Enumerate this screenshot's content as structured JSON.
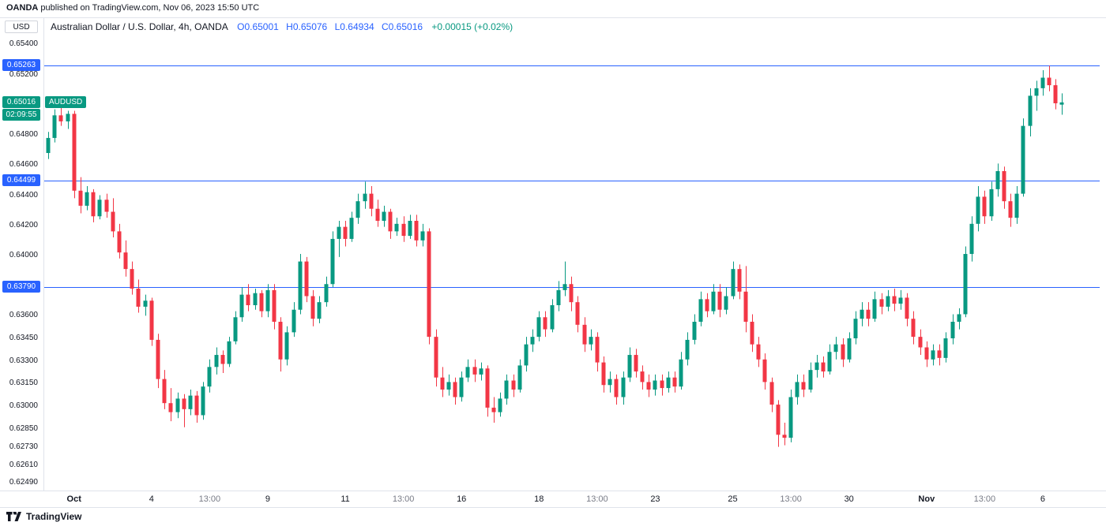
{
  "attribution": {
    "source": "OANDA",
    "rest": " published on TradingView.com, Nov 06, 2023 15:50 UTC"
  },
  "header": {
    "symbol_title": "Australian Dollar / U.S. Dollar, 4h, OANDA",
    "ohlc": [
      {
        "k": "O",
        "v": "0.65001"
      },
      {
        "k": "H",
        "v": "0.65076"
      },
      {
        "k": "L",
        "v": "0.64934"
      },
      {
        "k": "C",
        "v": "0.65016"
      }
    ],
    "change": "+0.00015 (+0.02%)"
  },
  "price_axis": {
    "currency": "USD",
    "ticks": [
      "0.65400",
      "0.65200",
      "0.64800",
      "0.64600",
      "0.64400",
      "0.64200",
      "0.64000",
      "0.63600",
      "0.63450",
      "0.63300",
      "0.63150",
      "0.63000",
      "0.62850",
      "0.62730",
      "0.62610",
      "0.62490"
    ]
  },
  "current_price": {
    "price": "0.65016",
    "symbol_tag": "AUDUSD",
    "countdown": "02:09:55"
  },
  "footer": {
    "brand": "TradingView"
  },
  "colors": {
    "up": "#089981",
    "down": "#f23645",
    "level_line": "#2962ff",
    "badge_blue": "#2962ff",
    "badge_green": "#089981",
    "value_blue": "#2962ff",
    "change_green": "#089981"
  },
  "chart_data": {
    "type": "candlestick",
    "title": "Australian Dollar / U.S. Dollar",
    "symbol": "AUDUSD",
    "interval": "4h",
    "exchange": "OANDA",
    "ylim": [
      0.6244,
      0.6546
    ],
    "levels": [
      "0.65263",
      "0.64499",
      "0.63790"
    ],
    "last_close": "0.65016",
    "x_labels": [
      {
        "t": "Oct",
        "bar": 4,
        "bold": true
      },
      {
        "t": "4",
        "bar": 16
      },
      {
        "t": "13:00",
        "bar": 25,
        "minor": true
      },
      {
        "t": "9",
        "bar": 34
      },
      {
        "t": "11",
        "bar": 46
      },
      {
        "t": "13:00",
        "bar": 55,
        "minor": true
      },
      {
        "t": "16",
        "bar": 64
      },
      {
        "t": "18",
        "bar": 76
      },
      {
        "t": "13:00",
        "bar": 85,
        "minor": true
      },
      {
        "t": "23",
        "bar": 94
      },
      {
        "t": "25",
        "bar": 106
      },
      {
        "t": "13:00",
        "bar": 115,
        "minor": true
      },
      {
        "t": "30",
        "bar": 124
      },
      {
        "t": "Nov",
        "bar": 136,
        "bold": true
      },
      {
        "t": "13:00",
        "bar": 145,
        "minor": true
      },
      {
        "t": "6",
        "bar": 154
      }
    ],
    "candles": [
      [
        0.6468,
        0.6482,
        0.6464,
        0.6478
      ],
      [
        0.6478,
        0.6497,
        0.6475,
        0.6493
      ],
      [
        0.6493,
        0.6499,
        0.6486,
        0.6489
      ],
      [
        0.6489,
        0.6496,
        0.6484,
        0.6494
      ],
      [
        0.6494,
        0.6496,
        0.6438,
        0.6443
      ],
      [
        0.6443,
        0.6452,
        0.6428,
        0.6433
      ],
      [
        0.6433,
        0.6446,
        0.643,
        0.6442
      ],
      [
        0.6442,
        0.6444,
        0.6422,
        0.6426
      ],
      [
        0.6426,
        0.644,
        0.6424,
        0.6437
      ],
      [
        0.6437,
        0.6441,
        0.6425,
        0.6429
      ],
      [
        0.6429,
        0.6438,
        0.6412,
        0.6416
      ],
      [
        0.6416,
        0.6421,
        0.6398,
        0.6402
      ],
      [
        0.6402,
        0.641,
        0.6386,
        0.6391
      ],
      [
        0.6391,
        0.6396,
        0.6374,
        0.6378
      ],
      [
        0.6378,
        0.6384,
        0.6362,
        0.6366
      ],
      [
        0.6366,
        0.6374,
        0.636,
        0.637
      ],
      [
        0.637,
        0.6372,
        0.634,
        0.6344
      ],
      [
        0.6344,
        0.6348,
        0.6312,
        0.6318
      ],
      [
        0.6318,
        0.6324,
        0.6298,
        0.6302
      ],
      [
        0.6302,
        0.6312,
        0.629,
        0.6296
      ],
      [
        0.6296,
        0.6309,
        0.6292,
        0.6305
      ],
      [
        0.6305,
        0.6308,
        0.6286,
        0.6298
      ],
      [
        0.6298,
        0.6311,
        0.6294,
        0.6307
      ],
      [
        0.6307,
        0.631,
        0.6289,
        0.6294
      ],
      [
        0.6294,
        0.6316,
        0.6291,
        0.6313
      ],
      [
        0.6313,
        0.6331,
        0.6309,
        0.6326
      ],
      [
        0.6326,
        0.6339,
        0.6321,
        0.6334
      ],
      [
        0.6334,
        0.6337,
        0.6322,
        0.6328
      ],
      [
        0.6328,
        0.6346,
        0.6326,
        0.6343
      ],
      [
        0.6343,
        0.6363,
        0.6341,
        0.6359
      ],
      [
        0.6359,
        0.6379,
        0.6356,
        0.6374
      ],
      [
        0.6374,
        0.6381,
        0.6363,
        0.6367
      ],
      [
        0.6367,
        0.6378,
        0.6364,
        0.6375
      ],
      [
        0.6375,
        0.6377,
        0.6359,
        0.6363
      ],
      [
        0.6363,
        0.6381,
        0.6359,
        0.6377
      ],
      [
        0.6377,
        0.6381,
        0.6351,
        0.6356
      ],
      [
        0.6356,
        0.6359,
        0.6323,
        0.6331
      ],
      [
        0.6331,
        0.6353,
        0.6327,
        0.6349
      ],
      [
        0.6349,
        0.6369,
        0.6346,
        0.6364
      ],
      [
        0.6364,
        0.6401,
        0.6361,
        0.6396
      ],
      [
        0.6396,
        0.6399,
        0.6369,
        0.6373
      ],
      [
        0.6373,
        0.6377,
        0.6353,
        0.6358
      ],
      [
        0.6358,
        0.6373,
        0.6355,
        0.6369
      ],
      [
        0.6369,
        0.6386,
        0.6366,
        0.6381
      ],
      [
        0.6381,
        0.6416,
        0.6379,
        0.6411
      ],
      [
        0.6411,
        0.6423,
        0.6399,
        0.6419
      ],
      [
        0.6419,
        0.6423,
        0.6406,
        0.6411
      ],
      [
        0.6411,
        0.6429,
        0.6409,
        0.6425
      ],
      [
        0.6425,
        0.6441,
        0.6421,
        0.6436
      ],
      [
        0.6436,
        0.6449,
        0.6431,
        0.6441
      ],
      [
        0.6441,
        0.6446,
        0.6426,
        0.6431
      ],
      [
        0.6431,
        0.6437,
        0.6419,
        0.6423
      ],
      [
        0.6423,
        0.6433,
        0.6419,
        0.6429
      ],
      [
        0.6429,
        0.6431,
        0.6411,
        0.6416
      ],
      [
        0.6416,
        0.6425,
        0.6413,
        0.6421
      ],
      [
        0.6421,
        0.6426,
        0.6409,
        0.6413
      ],
      [
        0.6413,
        0.6427,
        0.6411,
        0.6423
      ],
      [
        0.6423,
        0.6427,
        0.6406,
        0.641
      ],
      [
        0.641,
        0.6421,
        0.6406,
        0.6416
      ],
      [
        0.6416,
        0.6418,
        0.6341,
        0.6346
      ],
      [
        0.6346,
        0.6351,
        0.6313,
        0.6319
      ],
      [
        0.6319,
        0.6326,
        0.6306,
        0.6311
      ],
      [
        0.6311,
        0.6321,
        0.6307,
        0.6316
      ],
      [
        0.6316,
        0.6319,
        0.6301,
        0.6306
      ],
      [
        0.6306,
        0.6323,
        0.6303,
        0.6319
      ],
      [
        0.6319,
        0.6331,
        0.6316,
        0.6326
      ],
      [
        0.6326,
        0.6331,
        0.6316,
        0.6321
      ],
      [
        0.6321,
        0.6329,
        0.6317,
        0.6325
      ],
      [
        0.6325,
        0.6327,
        0.6293,
        0.6299
      ],
      [
        0.6299,
        0.6306,
        0.6289,
        0.6296
      ],
      [
        0.6296,
        0.6309,
        0.6293,
        0.6305
      ],
      [
        0.6305,
        0.6321,
        0.6301,
        0.6317
      ],
      [
        0.6317,
        0.6321,
        0.6306,
        0.6311
      ],
      [
        0.6311,
        0.6331,
        0.6309,
        0.6327
      ],
      [
        0.6327,
        0.6346,
        0.6323,
        0.6341
      ],
      [
        0.6341,
        0.6351,
        0.6336,
        0.6346
      ],
      [
        0.6346,
        0.6363,
        0.6343,
        0.6359
      ],
      [
        0.6359,
        0.6363,
        0.6346,
        0.6351
      ],
      [
        0.6351,
        0.6371,
        0.6349,
        0.6367
      ],
      [
        0.6367,
        0.6383,
        0.6363,
        0.6377
      ],
      [
        0.6377,
        0.6396,
        0.6373,
        0.6381
      ],
      [
        0.6381,
        0.6386,
        0.6363,
        0.6369
      ],
      [
        0.6369,
        0.6373,
        0.6349,
        0.6354
      ],
      [
        0.6354,
        0.6359,
        0.6336,
        0.6341
      ],
      [
        0.6341,
        0.6351,
        0.6337,
        0.6346
      ],
      [
        0.6346,
        0.6349,
        0.6323,
        0.6329
      ],
      [
        0.6329,
        0.6333,
        0.6309,
        0.6314
      ],
      [
        0.6314,
        0.6323,
        0.6309,
        0.6318
      ],
      [
        0.6318,
        0.6321,
        0.6301,
        0.6306
      ],
      [
        0.6306,
        0.6323,
        0.6301,
        0.6319
      ],
      [
        0.6319,
        0.6339,
        0.6316,
        0.6334
      ],
      [
        0.6334,
        0.6338,
        0.6319,
        0.6323
      ],
      [
        0.6323,
        0.6327,
        0.6311,
        0.6316
      ],
      [
        0.6316,
        0.6321,
        0.6306,
        0.6311
      ],
      [
        0.6311,
        0.6321,
        0.6307,
        0.6317
      ],
      [
        0.6317,
        0.6321,
        0.6307,
        0.6312
      ],
      [
        0.6312,
        0.6323,
        0.6309,
        0.6319
      ],
      [
        0.6319,
        0.6323,
        0.6309,
        0.6313
      ],
      [
        0.6313,
        0.6336,
        0.6311,
        0.6331
      ],
      [
        0.6331,
        0.6349,
        0.6327,
        0.6344
      ],
      [
        0.6344,
        0.6361,
        0.6341,
        0.6356
      ],
      [
        0.6356,
        0.6376,
        0.6353,
        0.6371
      ],
      [
        0.6371,
        0.6375,
        0.6359,
        0.6363
      ],
      [
        0.6363,
        0.6381,
        0.6361,
        0.6376
      ],
      [
        0.6376,
        0.6381,
        0.6359,
        0.6364
      ],
      [
        0.6364,
        0.6379,
        0.6361,
        0.6373
      ],
      [
        0.6373,
        0.6396,
        0.6371,
        0.6391
      ],
      [
        0.6391,
        0.6394,
        0.6371,
        0.6376
      ],
      [
        0.6376,
        0.6393,
        0.6349,
        0.6356
      ],
      [
        0.6356,
        0.6361,
        0.6336,
        0.6341
      ],
      [
        0.6341,
        0.6346,
        0.6326,
        0.6331
      ],
      [
        0.6331,
        0.6335,
        0.6311,
        0.6316
      ],
      [
        0.6316,
        0.6319,
        0.6296,
        0.6301
      ],
      [
        0.6301,
        0.6304,
        0.6273,
        0.6281
      ],
      [
        0.6281,
        0.6289,
        0.6274,
        0.6279
      ],
      [
        0.6279,
        0.6311,
        0.6276,
        0.6306
      ],
      [
        0.6306,
        0.6321,
        0.6301,
        0.6316
      ],
      [
        0.6316,
        0.6321,
        0.6306,
        0.6311
      ],
      [
        0.6311,
        0.6329,
        0.6309,
        0.6324
      ],
      [
        0.6324,
        0.6334,
        0.6319,
        0.6329
      ],
      [
        0.6329,
        0.6333,
        0.6319,
        0.6323
      ],
      [
        0.6323,
        0.6341,
        0.6321,
        0.6336
      ],
      [
        0.6336,
        0.6346,
        0.6331,
        0.6341
      ],
      [
        0.6341,
        0.6345,
        0.6326,
        0.6331
      ],
      [
        0.6331,
        0.6349,
        0.6329,
        0.6345
      ],
      [
        0.6345,
        0.6363,
        0.6341,
        0.6358
      ],
      [
        0.6358,
        0.6369,
        0.6353,
        0.6364
      ],
      [
        0.6364,
        0.6369,
        0.6353,
        0.6358
      ],
      [
        0.6358,
        0.6376,
        0.6356,
        0.6371
      ],
      [
        0.6371,
        0.6375,
        0.6361,
        0.6366
      ],
      [
        0.6366,
        0.6377,
        0.6363,
        0.6373
      ],
      [
        0.6373,
        0.6378,
        0.6363,
        0.6368
      ],
      [
        0.6368,
        0.6377,
        0.6364,
        0.6372
      ],
      [
        0.6372,
        0.6375,
        0.6353,
        0.6358
      ],
      [
        0.6358,
        0.6363,
        0.6341,
        0.6346
      ],
      [
        0.6346,
        0.6351,
        0.6334,
        0.6339
      ],
      [
        0.6339,
        0.6343,
        0.6326,
        0.6331
      ],
      [
        0.6331,
        0.6341,
        0.6327,
        0.6337
      ],
      [
        0.6337,
        0.6341,
        0.6327,
        0.6332
      ],
      [
        0.6332,
        0.6349,
        0.6329,
        0.6345
      ],
      [
        0.6345,
        0.6361,
        0.6341,
        0.6356
      ],
      [
        0.6356,
        0.6365,
        0.6351,
        0.6361
      ],
      [
        0.6361,
        0.6406,
        0.6359,
        0.6401
      ],
      [
        0.6401,
        0.6426,
        0.6396,
        0.6421
      ],
      [
        0.6421,
        0.6446,
        0.6416,
        0.6439
      ],
      [
        0.6439,
        0.6443,
        0.6421,
        0.6426
      ],
      [
        0.6426,
        0.6449,
        0.6423,
        0.6444
      ],
      [
        0.6444,
        0.6461,
        0.6439,
        0.6456
      ],
      [
        0.6456,
        0.6459,
        0.6431,
        0.6436
      ],
      [
        0.6436,
        0.6441,
        0.6419,
        0.6425
      ],
      [
        0.6425,
        0.6446,
        0.6421,
        0.6441
      ],
      [
        0.6441,
        0.6491,
        0.6439,
        0.6486
      ],
      [
        0.6486,
        0.6511,
        0.6479,
        0.6506
      ],
      [
        0.6506,
        0.6516,
        0.6496,
        0.6511
      ],
      [
        0.6511,
        0.6523,
        0.6506,
        0.6518
      ],
      [
        0.6518,
        0.6526,
        0.6509,
        0.6513
      ],
      [
        0.6513,
        0.6517,
        0.6497,
        0.6501
      ],
      [
        0.65001,
        0.65076,
        0.64934,
        0.65016
      ]
    ]
  }
}
